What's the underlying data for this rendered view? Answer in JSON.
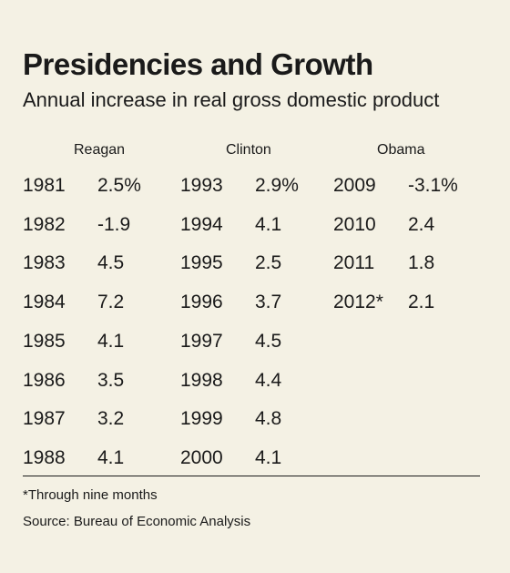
{
  "title": "Presidencies and Growth",
  "subtitle": "Annual increase in real gross domestic product",
  "chart_data": {
    "type": "table",
    "title": "Presidencies and Growth",
    "subtitle": "Annual increase in real gross domestic product",
    "columns": [
      {
        "name": "Reagan",
        "rows": [
          {
            "year": "1981",
            "value": "2.5%"
          },
          {
            "year": "1982",
            "value": "-1.9"
          },
          {
            "year": "1983",
            "value": "4.5"
          },
          {
            "year": "1984",
            "value": "7.2"
          },
          {
            "year": "1985",
            "value": "4.1"
          },
          {
            "year": "1986",
            "value": "3.5"
          },
          {
            "year": "1987",
            "value": "3.2"
          },
          {
            "year": "1988",
            "value": "4.1"
          }
        ]
      },
      {
        "name": "Clinton",
        "rows": [
          {
            "year": "1993",
            "value": "2.9%"
          },
          {
            "year": "1994",
            "value": "4.1"
          },
          {
            "year": "1995",
            "value": "2.5"
          },
          {
            "year": "1996",
            "value": "3.7"
          },
          {
            "year": "1997",
            "value": "4.5"
          },
          {
            "year": "1998",
            "value": "4.4"
          },
          {
            "year": "1999",
            "value": "4.8"
          },
          {
            "year": "2000",
            "value": "4.1"
          }
        ]
      },
      {
        "name": "Obama",
        "rows": [
          {
            "year": "2009",
            "value": "-3.1%"
          },
          {
            "year": "2010",
            "value": "2.4"
          },
          {
            "year": "2011",
            "value": "1.8"
          },
          {
            "year": "2012*",
            "value": "2.1"
          }
        ]
      }
    ]
  },
  "footnote": "*Through nine months",
  "source": "Source: Bureau of Economic Analysis"
}
